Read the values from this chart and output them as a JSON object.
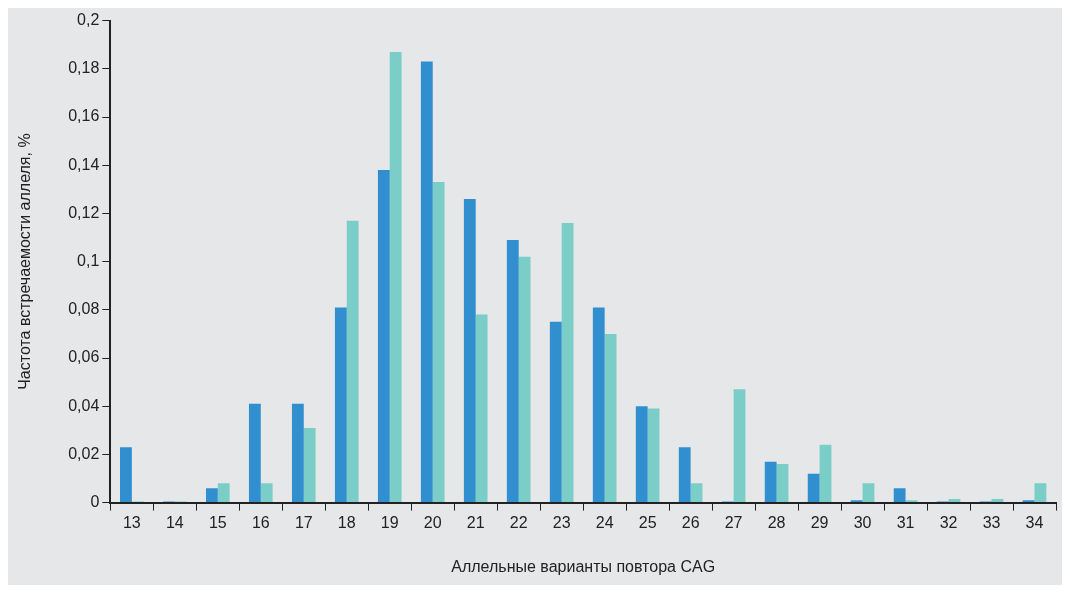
{
  "chart_data": {
    "type": "bar",
    "xlabel": "Аллельные варианты повтора CAG",
    "ylabel": "Частота встречаемости аллеля, %",
    "categories": [
      "13",
      "14",
      "15",
      "16",
      "17",
      "18",
      "19",
      "20",
      "21",
      "22",
      "23",
      "24",
      "25",
      "26",
      "27",
      "28",
      "29",
      "30",
      "31",
      "32",
      "33",
      "34"
    ],
    "series": [
      {
        "color": "#318fd0",
        "values": [
          0.023,
          0.0005,
          0.006,
          0.041,
          0.041,
          0.081,
          0.138,
          0.183,
          0.126,
          0.109,
          0.075,
          0.081,
          0.04,
          0.023,
          0.0005,
          0.017,
          0.012,
          0.001,
          0.006,
          0.0005,
          0.0005,
          0.001
        ]
      },
      {
        "color": "#7bcdc8",
        "values": [
          0.0005,
          0.0005,
          0.008,
          0.008,
          0.031,
          0.117,
          0.187,
          0.133,
          0.078,
          0.102,
          0.116,
          0.07,
          0.039,
          0.008,
          0.047,
          0.016,
          0.024,
          0.008,
          0.001,
          0.0015,
          0.0015,
          0.008
        ]
      }
    ],
    "ylim": [
      0,
      0.2
    ],
    "yticks": [
      0,
      {
        "value": 0.02,
        "label": "0,02"
      },
      {
        "value": 0.04,
        "label": "0,04"
      },
      {
        "value": 0.06,
        "label": "0,06"
      },
      {
        "value": 0.08,
        "label": "0,08"
      },
      {
        "value": 0.1,
        "label": "0,1"
      },
      {
        "value": 0.12,
        "label": "0,12"
      },
      {
        "value": 0.14,
        "label": "0,14"
      },
      {
        "value": 0.16,
        "label": "0,16"
      },
      {
        "value": 0.18,
        "label": "0,18"
      },
      {
        "value": 0.2,
        "label": "0,2"
      }
    ],
    "grid": false,
    "legend": false
  }
}
